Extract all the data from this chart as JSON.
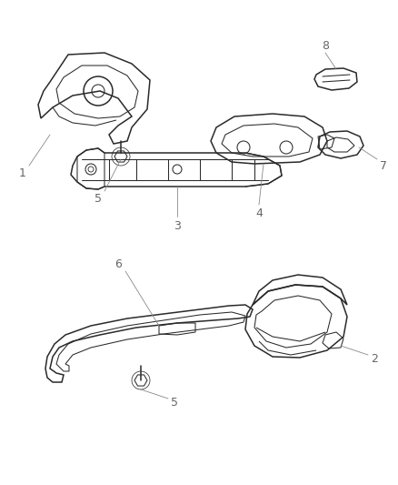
{
  "bg_color": "#ffffff",
  "line_color": "#2a2a2a",
  "label_color": "#666666",
  "leader_color": "#888888",
  "figsize": [
    4.38,
    5.33
  ],
  "dpi": 100,
  "parts": {
    "label_fontsize": 9
  }
}
